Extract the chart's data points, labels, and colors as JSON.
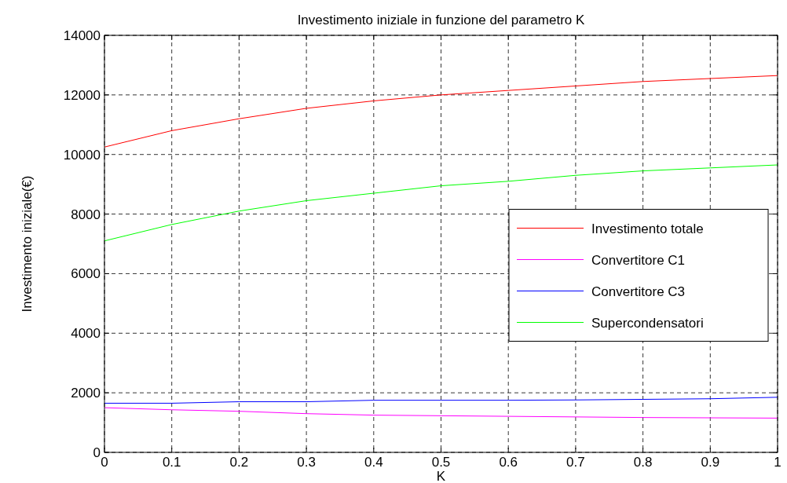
{
  "chart_data": {
    "type": "line",
    "title": "Investimento iniziale in funzione del parametro K",
    "xlabel": "K",
    "ylabel": "Investimento iniziale(€)",
    "xlim": [
      0,
      1
    ],
    "ylim": [
      0,
      14000
    ],
    "xticks": [
      0,
      0.1,
      0.2,
      0.3,
      0.4,
      0.5,
      0.6,
      0.7,
      0.8,
      0.9,
      1
    ],
    "yticks": [
      0,
      2000,
      4000,
      6000,
      8000,
      10000,
      12000,
      14000
    ],
    "grid": true,
    "legend": "right",
    "x": [
      0,
      0.1,
      0.2,
      0.3,
      0.4,
      0.5,
      0.6,
      0.7,
      0.8,
      0.9,
      1
    ],
    "series": [
      {
        "name": "Investimento totale",
        "color": "#ff0000",
        "values": [
          10250,
          10800,
          11200,
          11550,
          11800,
          12000,
          12150,
          12300,
          12450,
          12550,
          12650
        ]
      },
      {
        "name": "Convertitore C1",
        "color": "#ff00ff",
        "values": [
          1500,
          1430,
          1380,
          1300,
          1250,
          1230,
          1210,
          1190,
          1170,
          1160,
          1150
        ]
      },
      {
        "name": "Convertitore C3",
        "color": "#0000ff",
        "values": [
          1650,
          1650,
          1700,
          1700,
          1750,
          1750,
          1750,
          1760,
          1780,
          1800,
          1850
        ]
      },
      {
        "name": "Supercondensatori",
        "color": "#00ff00",
        "values": [
          7100,
          7650,
          8100,
          8450,
          8700,
          8950,
          9100,
          9300,
          9450,
          9550,
          9650
        ]
      }
    ]
  }
}
